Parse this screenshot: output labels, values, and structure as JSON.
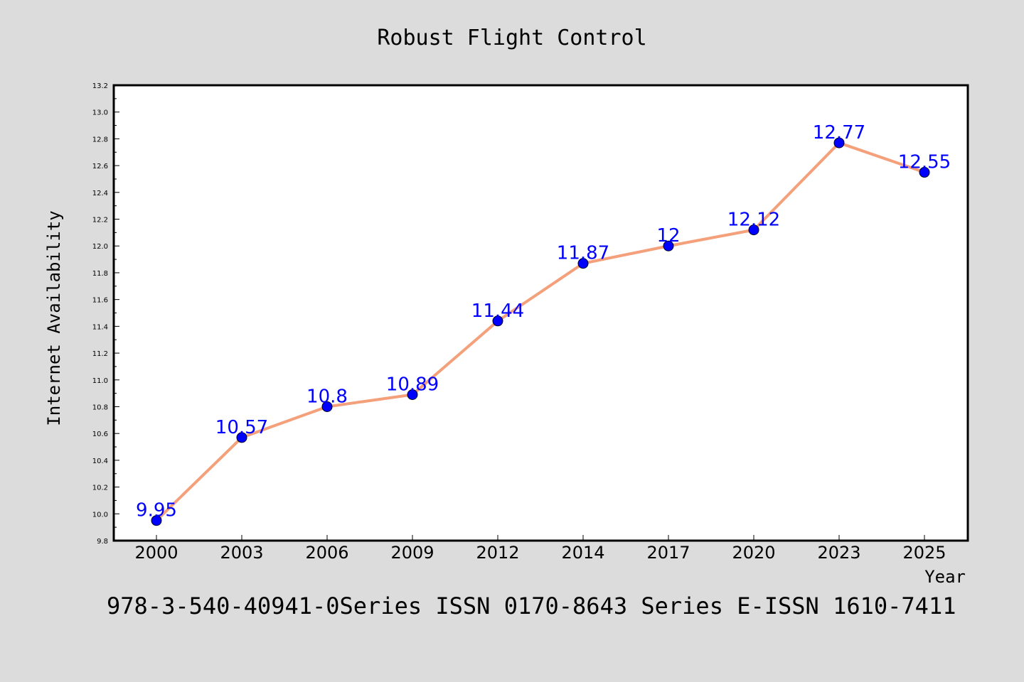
{
  "chart_data": {
    "type": "line",
    "title": "Robust Flight Control",
    "xlabel": "Year",
    "ylabel": "Internet Availability",
    "categories": [
      "2000",
      "2003",
      "2006",
      "2009",
      "2012",
      "2014",
      "2017",
      "2020",
      "2023",
      "2025"
    ],
    "series": [
      {
        "values": [
          9.95,
          10.57,
          10.8,
          10.89,
          11.44,
          11.87,
          12,
          12.12,
          12.77,
          12.55
        ],
        "labels": [
          "9.95",
          "10.57",
          "10.8",
          "10.89",
          "11.44",
          "11.87",
          "12",
          "12.12",
          "12.77",
          "12.55"
        ]
      }
    ],
    "ylim": [
      9.8,
      13.2
    ],
    "yticks": [
      "9.8",
      "10.0",
      "10.2",
      "10.4",
      "10.6",
      "10.8",
      "11.0",
      "11.2",
      "11.4",
      "11.6",
      "11.8",
      "12.0",
      "12.2",
      "12.4",
      "12.6",
      "12.8",
      "13.0",
      "13.2"
    ],
    "grid": false,
    "legend": "none",
    "colors": {
      "line": "#f4a07a",
      "marker": "#0000ff",
      "data_label": "#0000ff",
      "background": "#dcdcdc",
      "plot_area": "#ffffff"
    },
    "footer": "978-3-540-40941-0Series ISSN 0170-8643 Series E-ISSN 1610-7411"
  }
}
